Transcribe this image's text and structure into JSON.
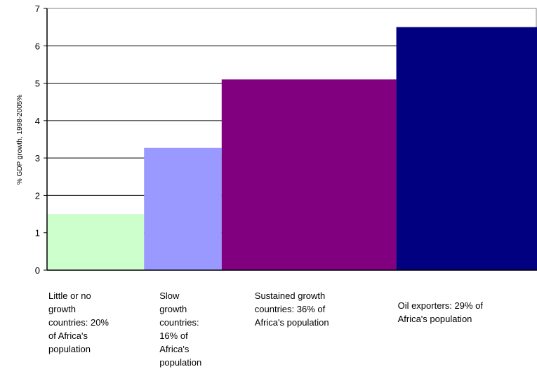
{
  "chart_data": {
    "type": "bar",
    "title": "",
    "xlabel": "",
    "ylabel": "% GDP growth, 1998-2005%",
    "ylim": [
      0,
      7
    ],
    "yticks": [
      "0",
      "1",
      "2",
      "3",
      "4",
      "5",
      "6",
      "7"
    ],
    "grid": true,
    "categories": [
      "Little or no growth countries: 20% of Africa's population",
      "Slow growth countries: 16% of Africa's population",
      "Sustained growth countries: 36% of Africa's population",
      "Oil exporters: 29% of Africa's population"
    ],
    "category_label_lines": [
      [
        "Little or no",
        "growth",
        "countries: 20%",
        "of Africa's",
        "population"
      ],
      [
        "Slow",
        "growth",
        "countries:",
        "16% of",
        "Africa's",
        "population"
      ],
      [
        "Sustained growth",
        "countries: 36% of",
        "Africa's population"
      ],
      [
        "Oil exporters: 29% of",
        "Africa's population"
      ]
    ],
    "values": [
      1.5,
      3.27,
      5.1,
      6.5
    ],
    "population_shares": [
      20,
      16,
      36,
      29
    ],
    "colors": [
      "#ccffcc",
      "#9999ff",
      "#800080",
      "#000080"
    ]
  }
}
